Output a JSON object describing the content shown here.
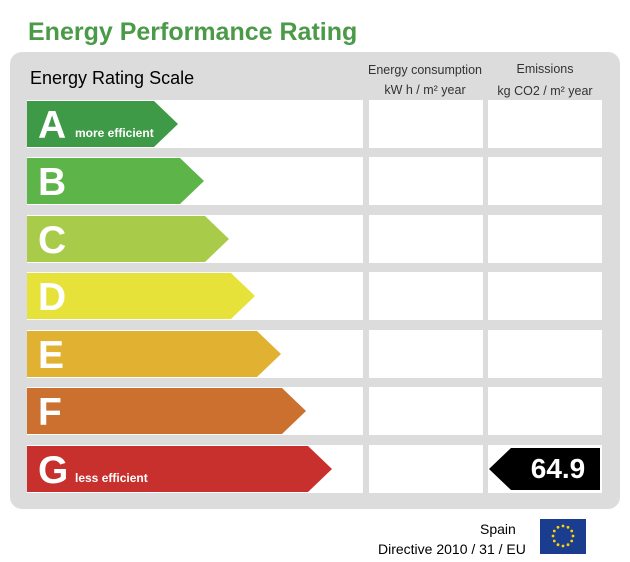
{
  "title": "Energy Performance Rating",
  "scale_title": "Energy Rating Scale",
  "columns": {
    "consumption_line1": "Energy consumption",
    "consumption_line2": "kW h / m² year",
    "emissions_line1": "Emissions",
    "emissions_line2": "kg CO2 / m² year"
  },
  "ratings": [
    {
      "letter": "A",
      "note": "more efficient",
      "color": "#3e9a47"
    },
    {
      "letter": "B",
      "note": "",
      "color": "#5db448"
    },
    {
      "letter": "C",
      "note": "",
      "color": "#a9cb4a"
    },
    {
      "letter": "D",
      "note": "",
      "color": "#e6e23a"
    },
    {
      "letter": "E",
      "note": "",
      "color": "#e1b231"
    },
    {
      "letter": "F",
      "note": "",
      "color": "#cc7030"
    },
    {
      "letter": "G",
      "note": "less efficient",
      "color": "#c8302e"
    }
  ],
  "emissions_rating": {
    "letter": "G",
    "value": "64.9"
  },
  "footer": {
    "country": "Spain",
    "directive": "Directive 2010 / 31 / EU",
    "flag_icon": "eu-flag-icon"
  }
}
